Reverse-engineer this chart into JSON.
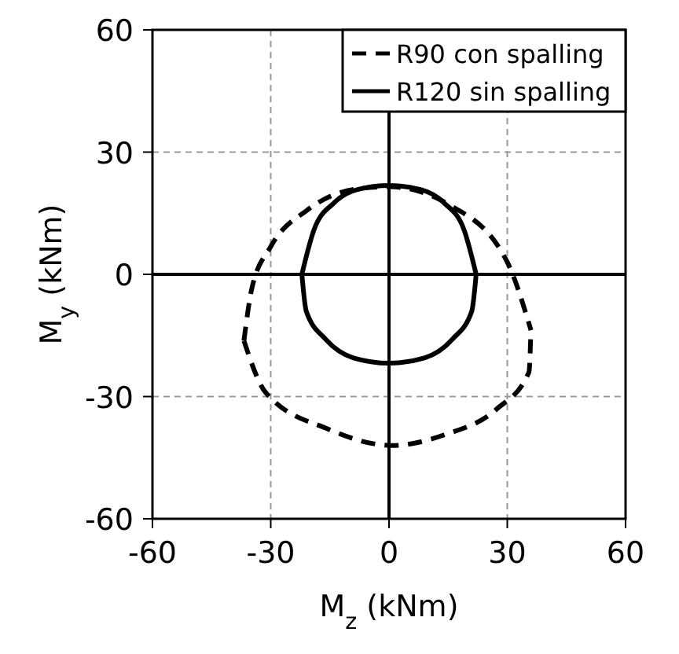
{
  "chart_data": {
    "type": "line",
    "xlabel": "M$_{z}$ (kNm)",
    "ylabel": "M$_{y}$ (kNm)",
    "xlim": [
      -60,
      60
    ],
    "ylim": [
      -60,
      60
    ],
    "xticks": [
      -60,
      -30,
      0,
      30,
      60
    ],
    "yticks": [
      -60,
      -30,
      0,
      30,
      60
    ],
    "grid": true,
    "legend": "top right",
    "series": [
      {
        "name": "R90 con spalling",
        "color": "#000000",
        "line_style": "dashed",
        "x": [
          -36.8,
          -34.8,
          -30,
          -20.7,
          -8.7,
          0,
          15.4,
          30,
          36,
          null,
          -36.8,
          -31.3,
          -15.4,
          0.7,
          14,
          27.4,
          35.5,
          36
        ],
        "values": [
          -16.3,
          -3.5,
          6.8,
          15.8,
          20.9,
          21.5,
          17,
          3,
          -13.7,
          null,
          -16.3,
          -29,
          -38,
          -42,
          -39.4,
          -33,
          -24,
          -13.7
        ]
      },
      {
        "name": "R120 sin spalling",
        "color": "#000000",
        "line_style": "solid",
        "x": [
          -22.1,
          -19,
          -14,
          -8,
          0,
          8,
          14,
          19,
          22.1,
          null,
          -22.1,
          -21,
          -16,
          -9,
          0,
          9,
          16,
          21,
          22.1
        ],
        "values": [
          0,
          11,
          17.5,
          20.8,
          21.8,
          20.8,
          17.5,
          11,
          0,
          null,
          0,
          -9,
          -16,
          -20.5,
          -21.8,
          -20.5,
          -16,
          -9,
          0
        ]
      }
    ]
  }
}
